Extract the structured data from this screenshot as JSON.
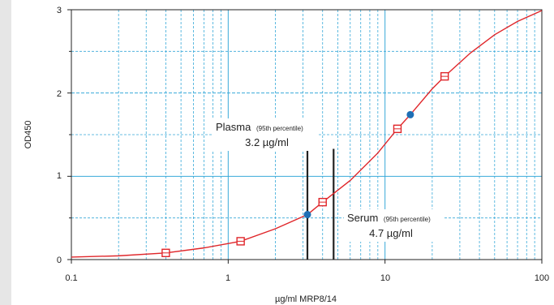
{
  "chart_data": {
    "type": "scatter",
    "title": "",
    "xlabel": "µg/ml MRP8/14",
    "ylabel": "OD450",
    "xscale": "log",
    "xlim": [
      0.1,
      100
    ],
    "ylim": [
      0,
      3
    ],
    "x_tick_labels": [
      "0.1",
      "1",
      "10",
      "100"
    ],
    "y_tick_labels": [
      "0",
      "1",
      "2",
      "3"
    ],
    "grid": true,
    "colors": {
      "grid": "#38a9d9",
      "curve": "#e0262a",
      "standards": "#e0262a",
      "samples": "#1f6fb5",
      "markers": "#222222"
    },
    "series": [
      {
        "marker": "square",
        "points": [
          {
            "x": 0.4,
            "y": 0.08
          },
          {
            "x": 1.2,
            "y": 0.22
          },
          {
            "x": 4.0,
            "y": 0.69
          },
          {
            "x": 12.0,
            "y": 1.57
          },
          {
            "x": 24.0,
            "y": 2.2
          }
        ]
      },
      {
        "marker": "circle",
        "points": [
          {
            "x": 3.2,
            "y": 0.54
          },
          {
            "x": 14.5,
            "y": 1.74
          }
        ]
      }
    ],
    "curve": {
      "x": [
        0.09,
        0.2,
        0.4,
        0.7,
        1.2,
        2.0,
        3.2,
        4.0,
        6.0,
        9.0,
        12.0,
        14.5,
        20.0,
        24.0,
        35.0,
        50.0,
        70.0,
        100.0
      ],
      "y": [
        0.03,
        0.045,
        0.08,
        0.14,
        0.22,
        0.37,
        0.54,
        0.69,
        0.95,
        1.28,
        1.57,
        1.74,
        2.05,
        2.2,
        2.48,
        2.7,
        2.86,
        2.99
      ]
    },
    "reference_lines": [
      {
        "x": 3.2,
        "y_top": 1.33
      },
      {
        "x": 4.7,
        "y_top": 1.33
      }
    ],
    "annotations": [
      {
        "id": "plasma",
        "label": "Plasma",
        "qualifier": "(95th percentile)",
        "value": "3.2 µg/ml"
      },
      {
        "id": "serum",
        "label": "Serum",
        "qualifier": "(95th percentile)",
        "value": "4.7 µg/ml"
      }
    ]
  }
}
